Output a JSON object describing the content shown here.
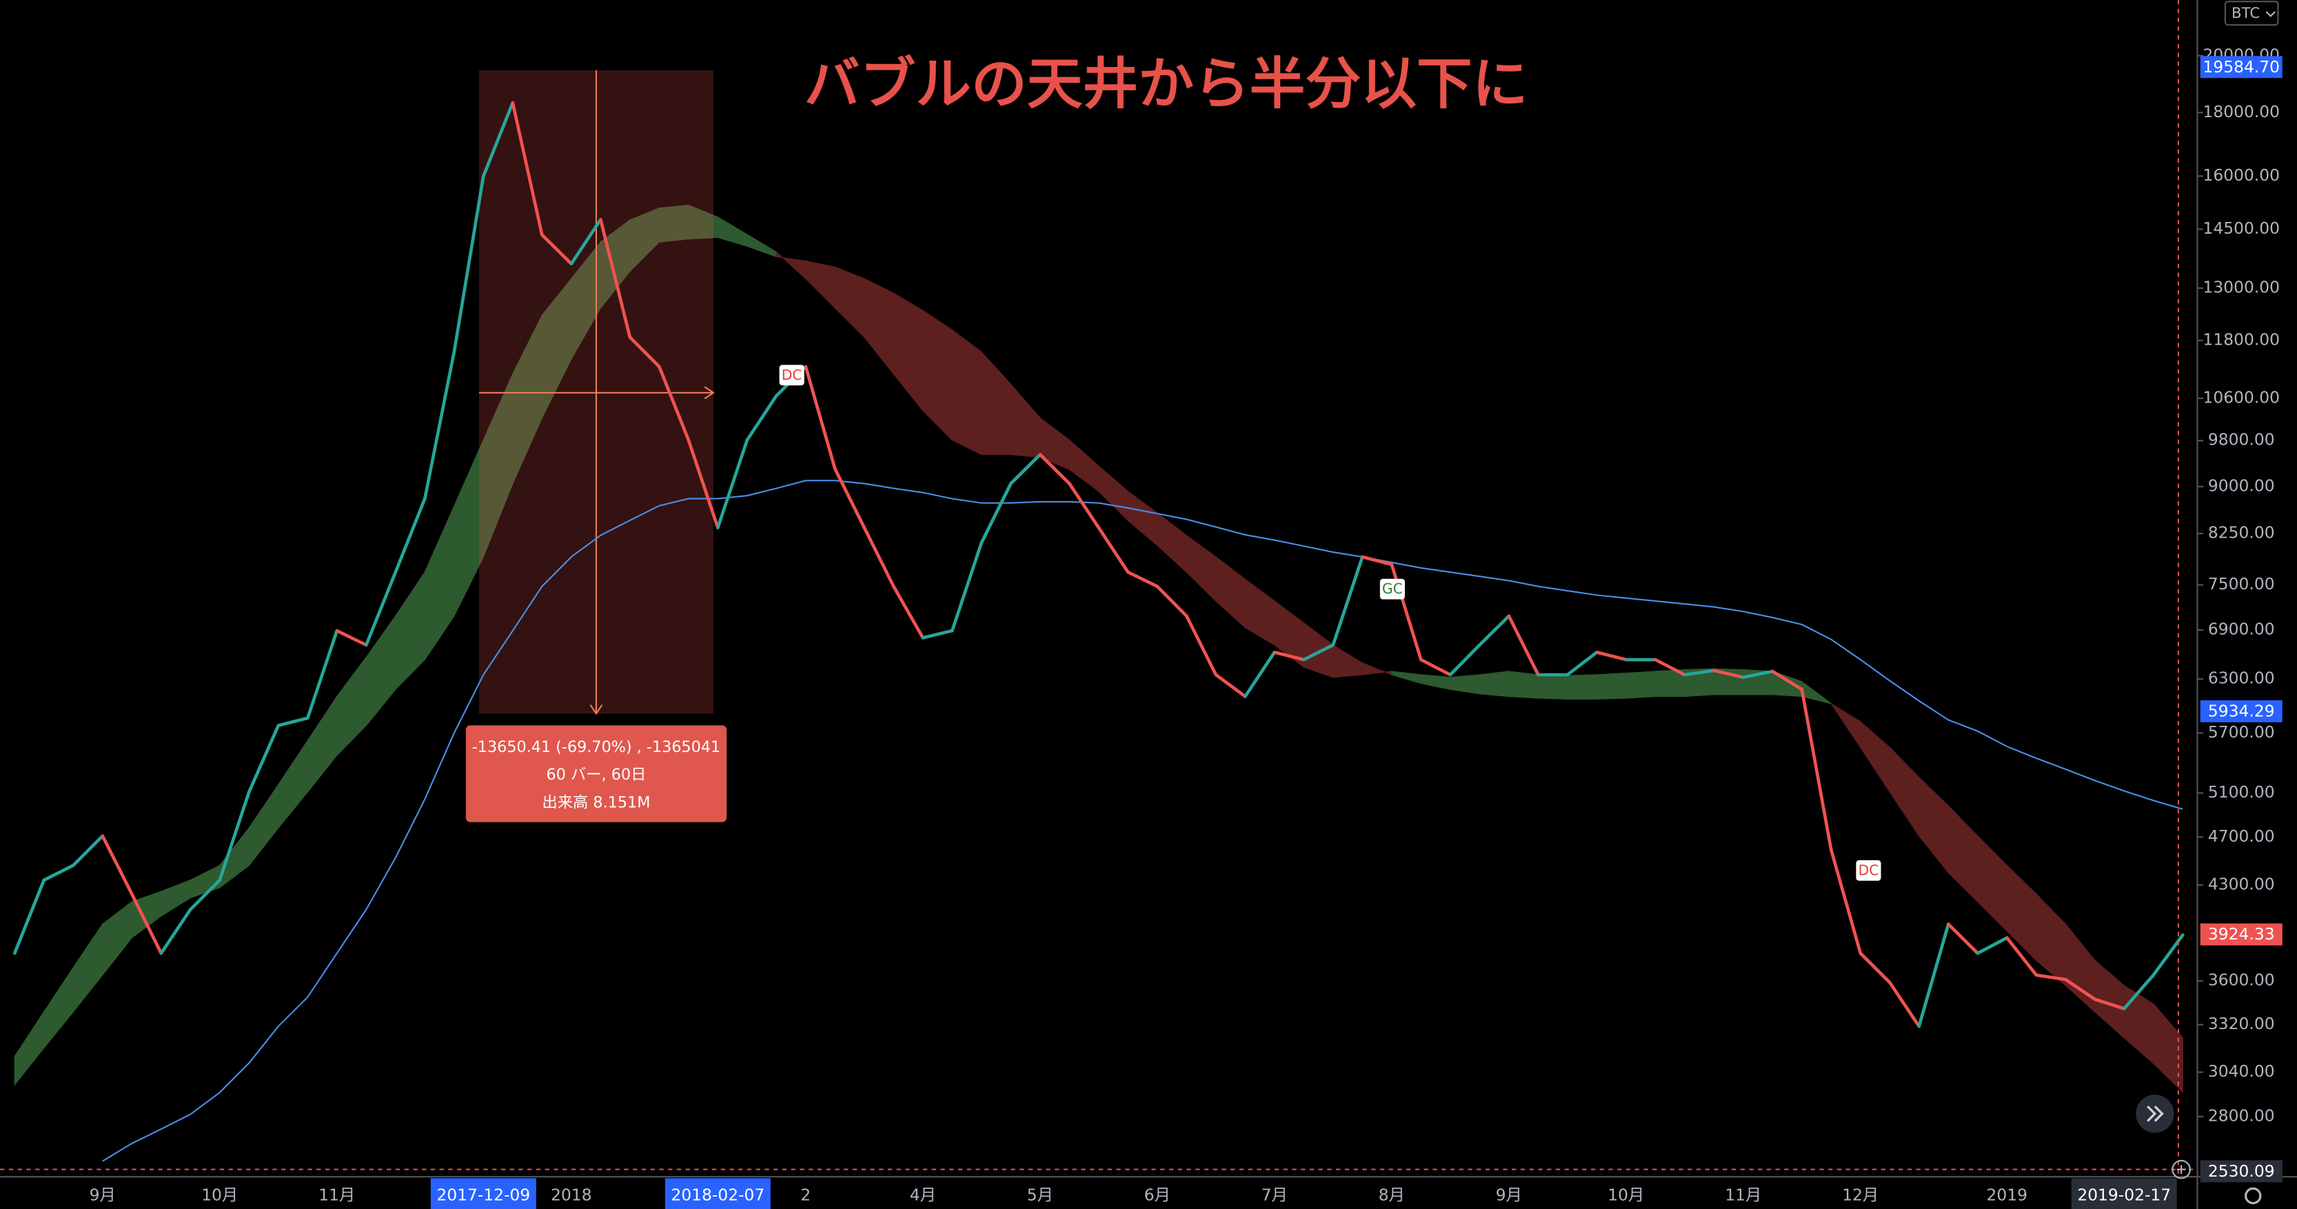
{
  "chart_data": {
    "type": "line",
    "title": "バブルの天井から半分以下に",
    "currency": "BTC",
    "log_scale": true,
    "grid": false,
    "ylim": [
      2525,
      22175
    ],
    "yticks": [
      {
        "value": 2800,
        "label": "2800.00"
      },
      {
        "value": 3040,
        "label": "3040.00"
      },
      {
        "value": 3320,
        "label": "3320.00"
      },
      {
        "value": 3600,
        "label": "3600.00"
      },
      {
        "value": 4300,
        "label": "4300.00"
      },
      {
        "value": 4700,
        "label": "4700.00"
      },
      {
        "value": 5100,
        "label": "5100.00"
      },
      {
        "value": 5700,
        "label": "5700.00"
      },
      {
        "value": 6300,
        "label": "6300.00"
      },
      {
        "value": 6900,
        "label": "6900.00"
      },
      {
        "value": 7500,
        "label": "7500.00"
      },
      {
        "value": 8250,
        "label": "8250.00"
      },
      {
        "value": 9000,
        "label": "9000.00"
      },
      {
        "value": 9800,
        "label": "9800.00"
      },
      {
        "value": 10600,
        "label": "10600.00"
      },
      {
        "value": 11800,
        "label": "11800.00"
      },
      {
        "value": 13000,
        "label": "13000.00"
      },
      {
        "value": 14500,
        "label": "14500.00"
      },
      {
        "value": 16000,
        "label": "16000.00"
      },
      {
        "value": 18000,
        "label": "18000.00"
      },
      {
        "value": 20000,
        "label": "20000.00"
      }
    ],
    "categories": [
      null,
      null,
      null,
      "9月",
      null,
      null,
      null,
      "10月",
      null,
      null,
      null,
      "11月",
      null,
      null,
      null,
      null,
      "2017-12-09",
      null,
      null,
      "2018",
      null,
      null,
      null,
      null,
      "2018-02-07",
      null,
      null,
      "2",
      null,
      null,
      null,
      "4月",
      null,
      null,
      null,
      "5月",
      null,
      null,
      null,
      "6月",
      null,
      null,
      null,
      "7月",
      null,
      null,
      null,
      "8月",
      null,
      null,
      null,
      "9月",
      null,
      null,
      null,
      "10月",
      null,
      null,
      null,
      "11月",
      null,
      null,
      null,
      "12月",
      null,
      null,
      null,
      null,
      "2019",
      null,
      null,
      null,
      "2019-02-17",
      null,
      null
    ],
    "series": [
      {
        "up_color": "#26a69a",
        "down_color": "#ef5350",
        "values": [
          3790,
          4340,
          4460,
          4710,
          4230,
          3790,
          4110,
          4340,
          5110,
          5780,
          5860,
          6890,
          6710,
          7680,
          8800,
          11550,
          16000,
          18330,
          14350,
          13600,
          14760,
          11870,
          11240,
          9810,
          8340,
          9810,
          10650,
          11240,
          9300,
          8340,
          7480,
          6800,
          6890,
          8110,
          9050,
          9550,
          9050,
          8340,
          7680,
          7480,
          7080,
          6350,
          6100,
          6620,
          6530,
          6710,
          7900,
          7790,
          6530,
          6350,
          6710,
          7080,
          6350,
          6350,
          6620,
          6530,
          6530,
          6350,
          6400,
          6320,
          6390,
          6180,
          4590,
          3790,
          3590,
          3310,
          4000,
          3790,
          3900,
          3640,
          3610,
          3480,
          3420,
          3640,
          3920
        ]
      },
      {
        "color": "#4a8fe7",
        "values": [
          null,
          null,
          null,
          2578,
          2664,
          2736,
          2812,
          2928,
          3092,
          3310,
          3494,
          3790,
          4110,
          4524,
          5042,
          5700,
          6350,
          6890,
          7480,
          7900,
          8222,
          8454,
          8686,
          8800,
          8800,
          8850,
          8970,
          9100,
          9100,
          9050,
          8970,
          8900,
          8800,
          8730,
          8730,
          8750,
          8750,
          8730,
          8650,
          8560,
          8470,
          8350,
          8230,
          8150,
          8060,
          7970,
          7900,
          7820,
          7740,
          7680,
          7620,
          7560,
          7480,
          7420,
          7360,
          7320,
          7280,
          7240,
          7200,
          7140,
          7060,
          6970,
          6780,
          6530,
          6280,
          6050,
          5840,
          5720,
          5560,
          5440,
          5330,
          5220,
          5120,
          5030,
          4950
        ]
      }
    ],
    "cloud": {
      "up_color": "#2d5a2e",
      "down_color": "#5e1f1f",
      "fast": [
        3130,
        3400,
        3690,
        4000,
        4170,
        4250,
        4340,
        4460,
        4780,
        5180,
        5620,
        6100,
        6560,
        7080,
        7680,
        8680,
        9810,
        11090,
        12360,
        13230,
        14160,
        14750,
        15080,
        15160,
        14830,
        14360,
        13900,
        13230,
        12530,
        11870,
        11090,
        10360,
        9810,
        9550,
        9550,
        9500,
        9290,
        8920,
        8450,
        8070,
        7680,
        7280,
        6930,
        6710,
        6440,
        6320,
        6350,
        6390,
        6350,
        6320,
        6350,
        6390,
        6350,
        6340,
        6350,
        6370,
        6390,
        6410,
        6420,
        6410,
        6390,
        6270,
        6020,
        5550,
        5110,
        4710,
        4400,
        4170,
        3950,
        3740,
        3570,
        3400,
        3240,
        3090,
        2930
      ],
      "slow": [
        2970,
        3180,
        3400,
        3640,
        3900,
        4060,
        4200,
        4280,
        4460,
        4780,
        5110,
        5470,
        5780,
        6180,
        6530,
        7080,
        7900,
        9050,
        10220,
        11400,
        12530,
        13410,
        14160,
        14240,
        14280,
        14050,
        13780,
        13670,
        13520,
        13230,
        12880,
        12470,
        12030,
        11550,
        10880,
        10220,
        9810,
        9350,
        8920,
        8570,
        8220,
        7900,
        7580,
        7280,
        6990,
        6710,
        6490,
        6350,
        6250,
        6180,
        6130,
        6100,
        6080,
        6070,
        6070,
        6080,
        6100,
        6100,
        6120,
        6120,
        6120,
        6100,
        6020,
        5820,
        5550,
        5250,
        4980,
        4710,
        4460,
        4230,
        4000,
        3740,
        3570,
        3450,
        3240
      ]
    },
    "price_labels": [
      {
        "value": 19584.7,
        "label": "19584.70",
        "color": "#2962ff"
      },
      {
        "value": 5934.29,
        "label": "5934.29",
        "color": "#2962ff"
      },
      {
        "value": 3924.33,
        "label": "3924.33",
        "color": "#ef5350"
      },
      {
        "value": 2530.09,
        "label": "2530.09",
        "color": "#2a2e39"
      }
    ],
    "measure": [
      "-13650.41 (-69.70%) , -1365041",
      "60 バー, 60日",
      "出来高 8.151M"
    ],
    "signals": [
      "DC",
      "GC",
      "DC"
    ]
  }
}
